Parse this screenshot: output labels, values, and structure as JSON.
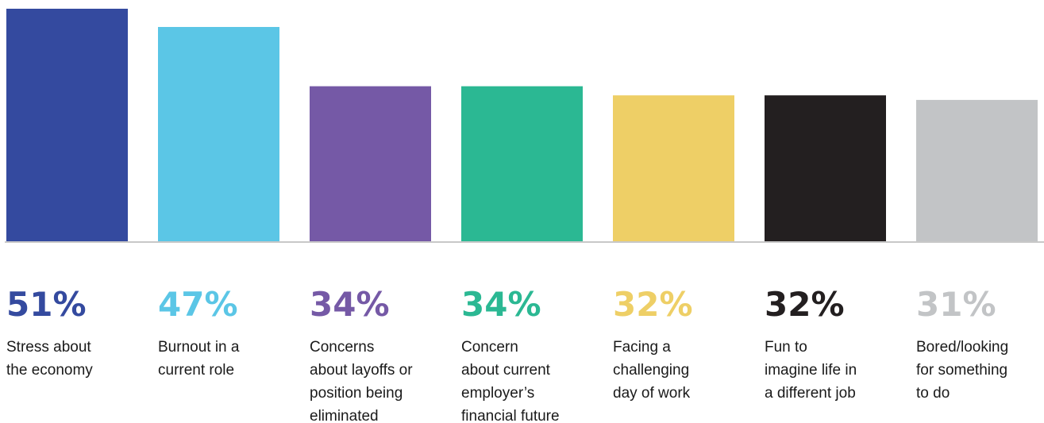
{
  "chart_data": {
    "type": "bar",
    "categories": [
      [
        "Stress about",
        "the economy"
      ],
      [
        "Burnout in a",
        "current role"
      ],
      [
        "Concerns",
        "about layoffs or",
        "position being",
        "eliminated"
      ],
      [
        "Concern",
        "about current",
        "employer’s",
        "financial future"
      ],
      [
        "Facing a",
        "challenging",
        "day of work"
      ],
      [
        "Fun to",
        "imagine life in",
        "a different job"
      ],
      [
        "Bored/looking",
        "for something",
        "to do"
      ]
    ],
    "values": [
      51,
      47,
      34,
      34,
      32,
      32,
      31
    ],
    "value_labels": [
      "51%",
      "47%",
      "34%",
      "34%",
      "32%",
      "32%",
      "31%"
    ],
    "colors": [
      "#344a9f",
      "#5bc6e6",
      "#7559a6",
      "#2bb893",
      "#eecf66",
      "#231f20",
      "#c2c4c6"
    ],
    "baseline_color": "#c8c8c8",
    "title": "",
    "xlabel": "",
    "ylabel": "",
    "ylim": [
      0,
      51
    ],
    "grid": false,
    "legend": "none"
  }
}
